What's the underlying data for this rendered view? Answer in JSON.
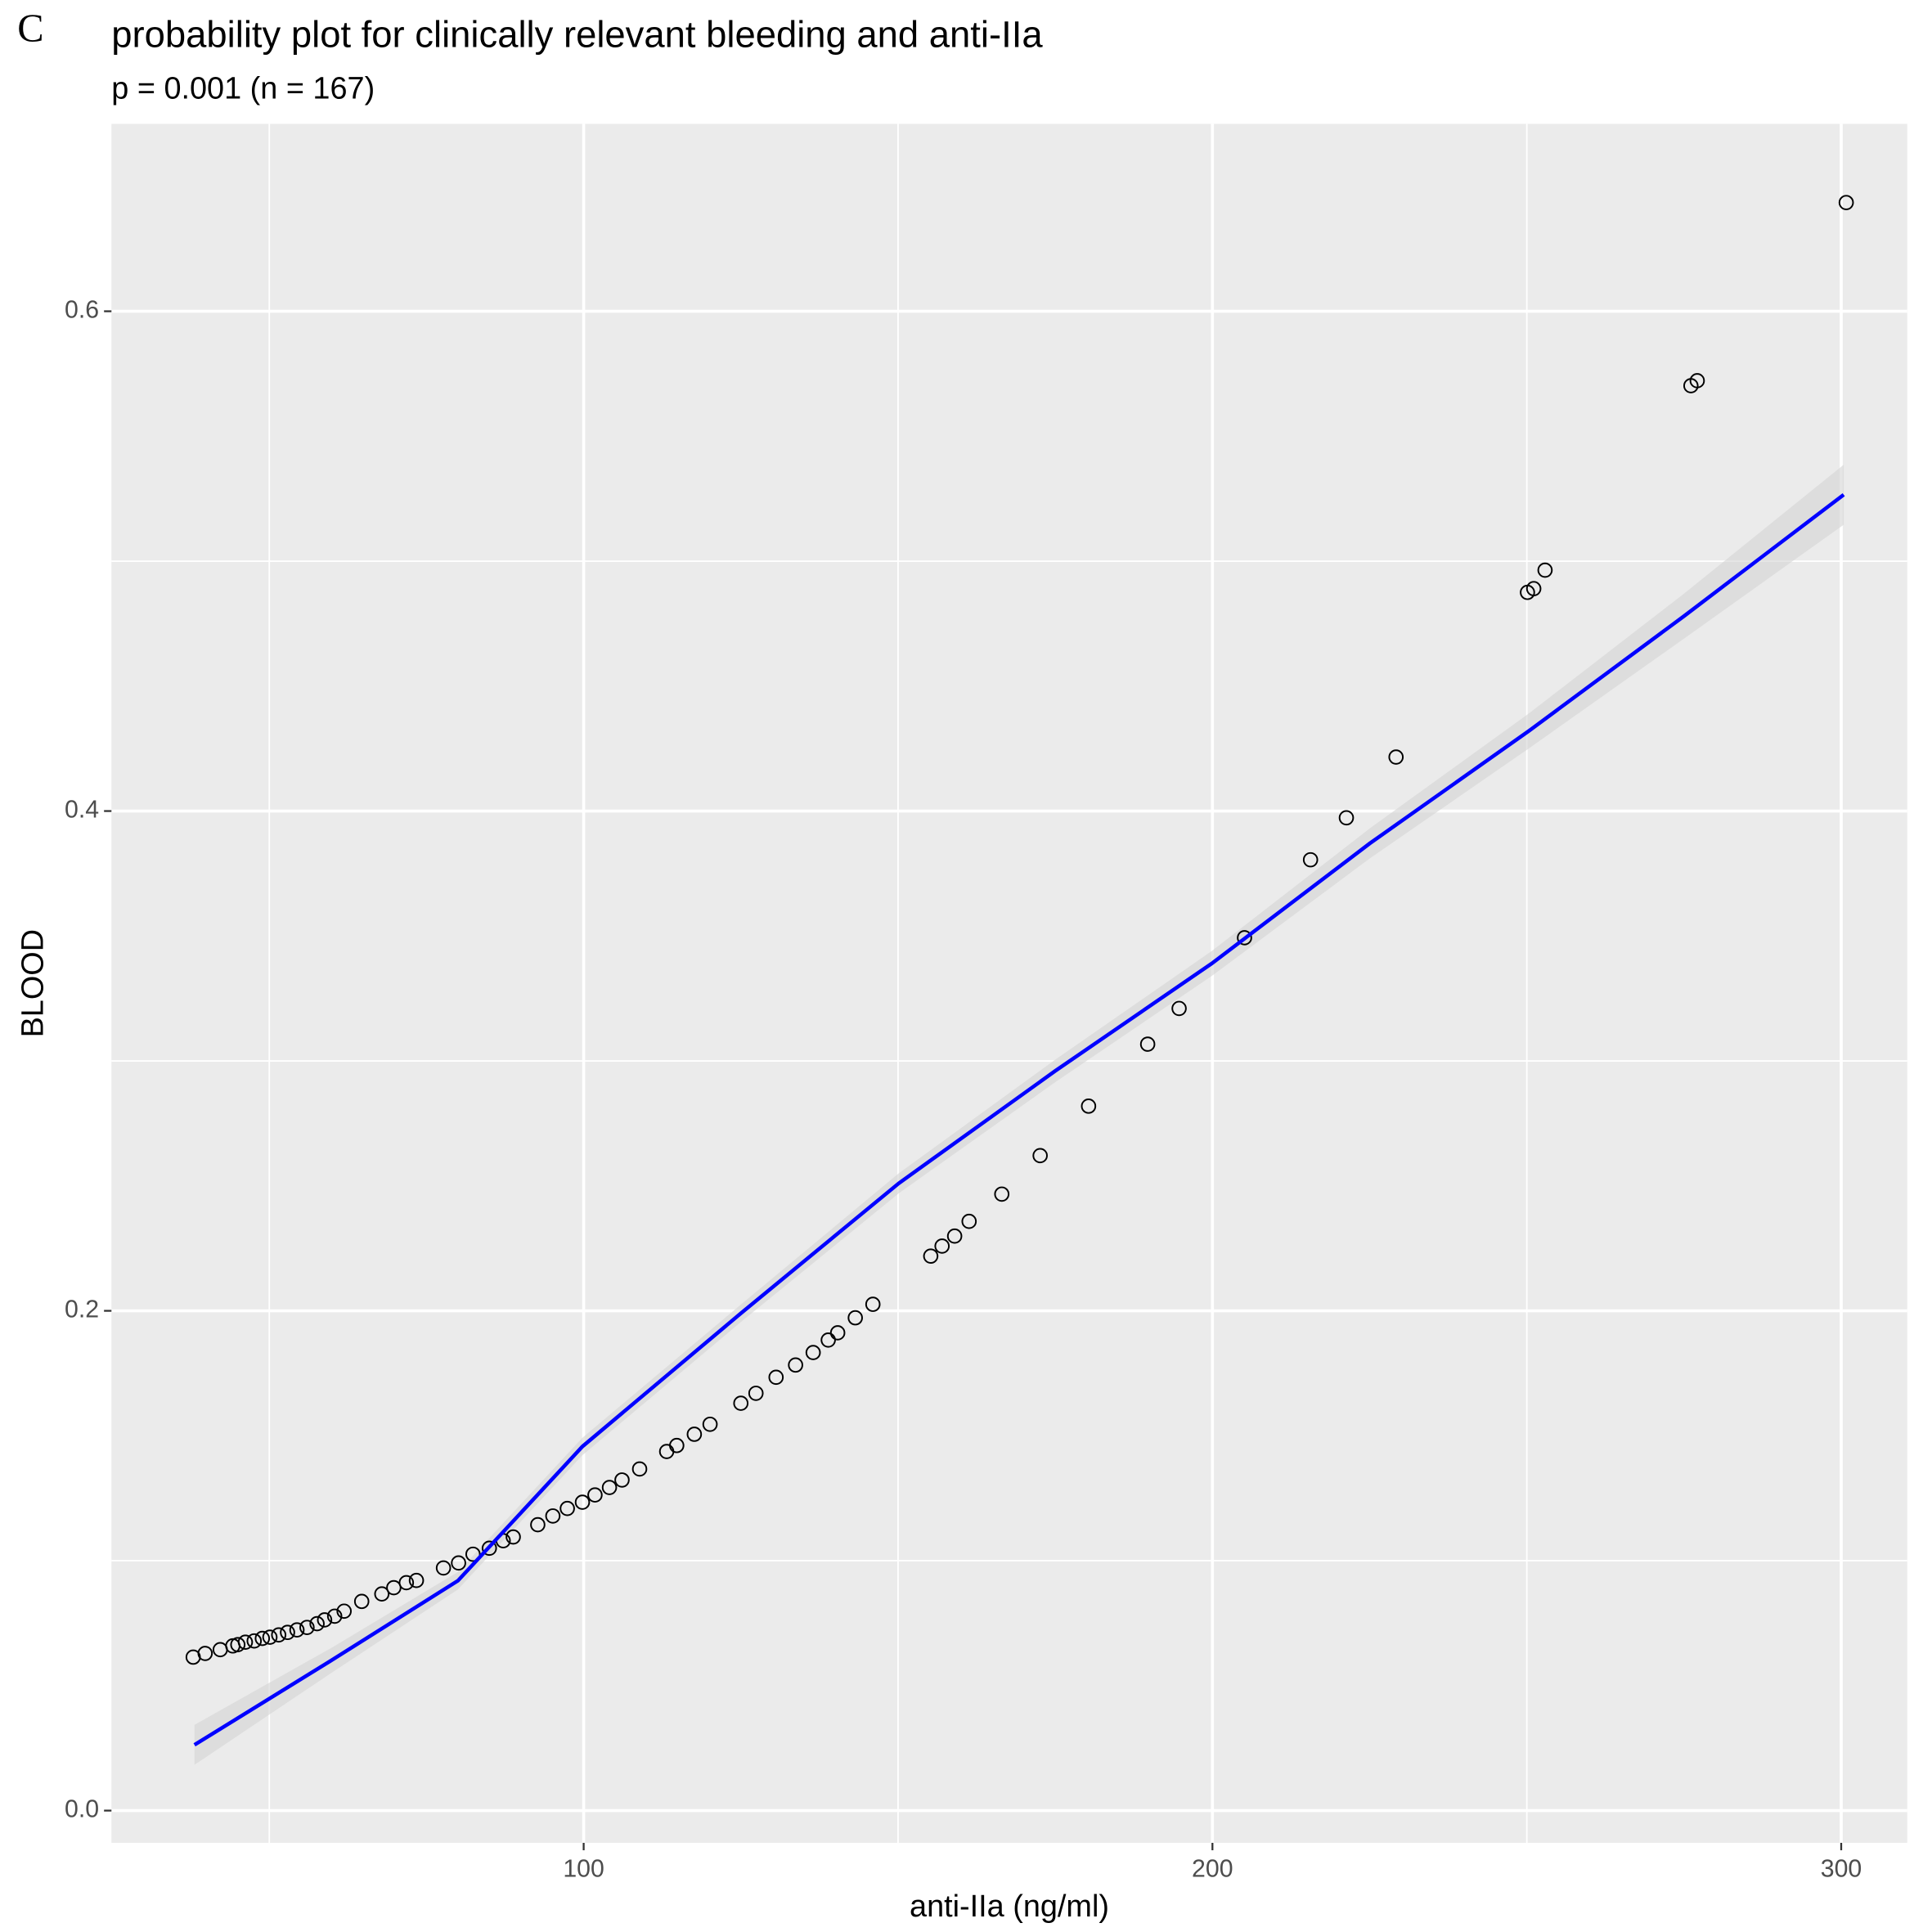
{
  "chart_data": {
    "type": "scatter",
    "panel_label": "C",
    "title": "probability plot for clinically relevant bleeding and anti-IIa",
    "subtitle": "p = 0.001 (n = 167)",
    "x_label": "anti-IIa (ng/ml)",
    "y_label": "BLOOD",
    "xlim": [
      24.9,
      310.5
    ],
    "ylim": [
      -0.0129,
      0.675
    ],
    "xticks": [
      100,
      200,
      300
    ],
    "xminor": [
      50,
      150,
      250
    ],
    "yticks": [
      {
        "value": 0,
        "label": "0.0"
      },
      0.2,
      0.4,
      0.6
    ],
    "yminor": [
      0.1,
      0.3,
      0.5
    ],
    "grid": true,
    "point_color": "#000000",
    "x": [
      37.9,
      39.8,
      42.2,
      44.2,
      45.0,
      46.2,
      47.6,
      48.9,
      50.1,
      51.5,
      52.9,
      54.4,
      56.0,
      57.6,
      58.8,
      60.4,
      61.9,
      64.7,
      67.9,
      69.8,
      71.8,
      73.4,
      77.7,
      80.1,
      82.4,
      85.0,
      87.2,
      88.8,
      92.7,
      95.1,
      97.4,
      99.8,
      101.8,
      104.1,
      106.1,
      108.9,
      113.2,
      114.8,
      117.6,
      120.1,
      125.0,
      127.4,
      130.6,
      133.7,
      136.5,
      138.9,
      140.4,
      143.2,
      146.0,
      155.2,
      157.0,
      159.0,
      161.3,
      166.5,
      172.6,
      180.3,
      189.7,
      194.7,
      205.1,
      215.6,
      221.3,
      229.2,
      250.1,
      251.1,
      252.9,
      276.1,
      277.1,
      300.8
    ],
    "y": [
      0.0614,
      0.0629,
      0.0644,
      0.0659,
      0.0664,
      0.0674,
      0.0679,
      0.0689,
      0.0694,
      0.0703,
      0.0713,
      0.0723,
      0.0733,
      0.0748,
      0.0763,
      0.0778,
      0.0798,
      0.0837,
      0.0867,
      0.0892,
      0.0912,
      0.0921,
      0.0971,
      0.0991,
      0.1026,
      0.105,
      0.108,
      0.1095,
      0.1144,
      0.1179,
      0.1209,
      0.1234,
      0.1263,
      0.1293,
      0.1323,
      0.1367,
      0.1437,
      0.1461,
      0.1506,
      0.1546,
      0.163,
      0.167,
      0.1734,
      0.1783,
      0.1833,
      0.1883,
      0.1912,
      0.1972,
      0.2026,
      0.2219,
      0.2259,
      0.2299,
      0.2358,
      0.2467,
      0.2621,
      0.2819,
      0.3067,
      0.321,
      0.3493,
      0.3805,
      0.3973,
      0.4216,
      0.4875,
      0.489,
      0.4964,
      0.5702,
      0.5722,
      0.6435
    ],
    "fit": {
      "color": "#0000ff",
      "ribbon_color": "#d4d4d4",
      "x": [
        38.1,
        60.0,
        80.0,
        99.8,
        125.0,
        150.1,
        175.0,
        199.9,
        225.0,
        250.3,
        275.0,
        300.4
      ],
      "y": [
        0.0263,
        0.0603,
        0.092,
        0.1457,
        0.199,
        0.251,
        0.296,
        0.339,
        0.387,
        0.432,
        0.478,
        0.5266
      ],
      "lower": [
        0.0183,
        0.0553,
        0.0885,
        0.1422,
        0.1955,
        0.247,
        0.2915,
        0.334,
        0.381,
        0.425,
        0.469,
        0.5146
      ],
      "upper": [
        0.0343,
        0.0653,
        0.0955,
        0.1492,
        0.2025,
        0.255,
        0.3005,
        0.344,
        0.393,
        0.439,
        0.487,
        0.5386
      ]
    }
  }
}
